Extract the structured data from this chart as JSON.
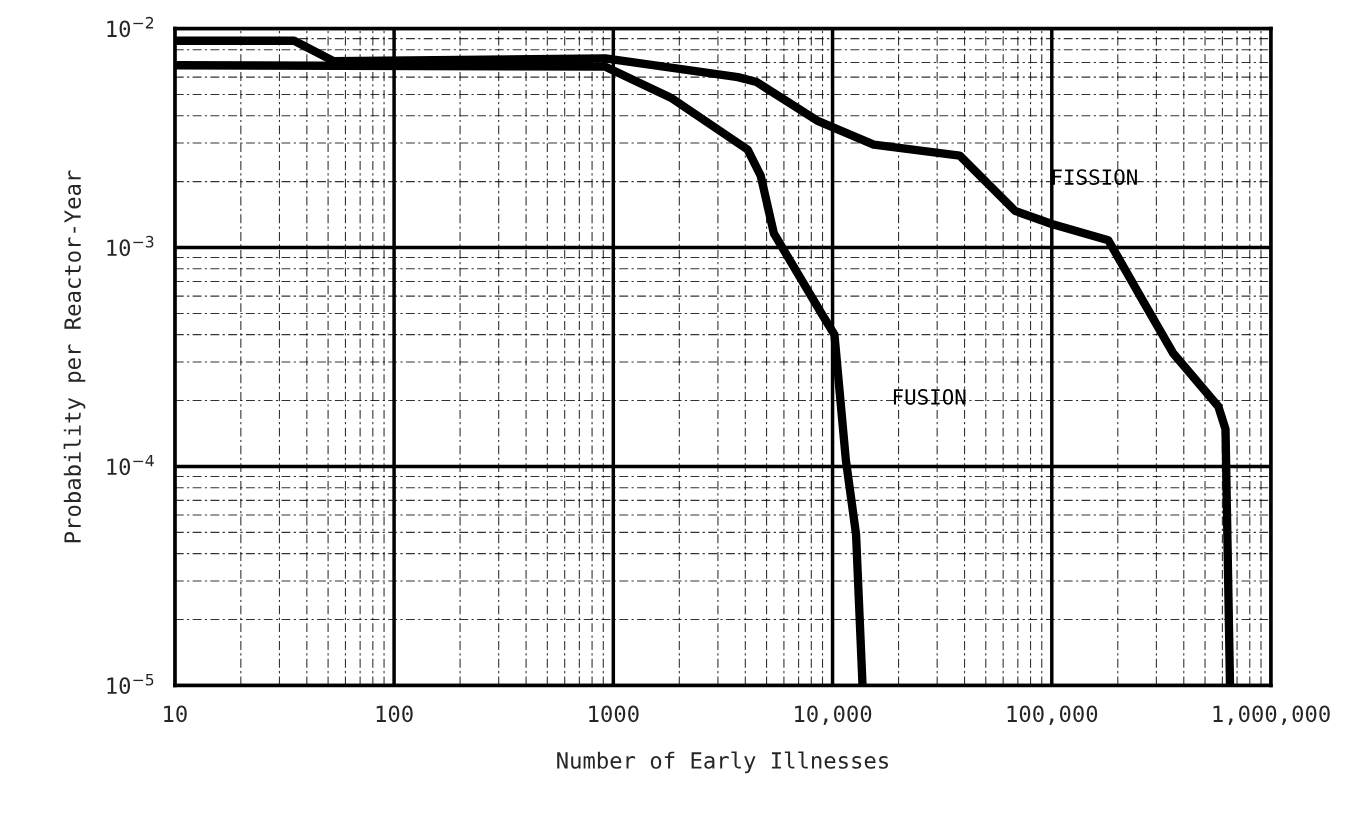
{
  "chart_data": {
    "type": "line",
    "xlabel": "Number of Early Illnesses",
    "ylabel": "Probability per Reactor-Year",
    "log": "xy",
    "grid": true,
    "legend": false,
    "xlim": [
      10,
      1000000
    ],
    "ylim": [
      1e-05,
      0.01
    ],
    "xticks": [
      10,
      100,
      {
        "value": 1000,
        "label": "1000"
      },
      {
        "value": 10000,
        "label": "10,000"
      },
      {
        "value": 100000,
        "label": "100,000"
      },
      {
        "value": 1000000,
        "label": "1,000,000"
      }
    ],
    "yticks": [
      {
        "value": 1e-05,
        "label": "10$^{−5}$"
      },
      {
        "value": 0.0001,
        "label": "10$^{−4}$"
      },
      {
        "value": 0.001,
        "label": "10$^{−3}$"
      },
      {
        "value": 0.01,
        "label": "10$^{−2}$"
      }
    ],
    "series": [
      {
        "name": "FISSION",
        "color": "#000000",
        "x": [
          10,
          35,
          53,
          920,
          3700,
          4500,
          8500,
          15400,
          38000,
          68000,
          100000,
          181000,
          266000,
          357000,
          575000,
          620000,
          650000
        ],
        "values": [
          0.0088,
          0.0088,
          0.0071,
          0.0073,
          0.006,
          0.0057,
          0.0038,
          0.00295,
          0.00263,
          0.00147,
          0.00128,
          0.00108,
          0.00055,
          0.00033,
          0.000188,
          0.000148,
          1e-05
        ]
      },
      {
        "name": "FUSION",
        "color": "#000000",
        "x": [
          10,
          920,
          1850,
          4100,
          4700,
          5400,
          8900,
          10200,
          11500,
          12800,
          13700
        ],
        "values": [
          0.0068,
          0.0067,
          0.0048,
          0.0028,
          0.00213,
          0.00116,
          0.0005,
          0.0004,
          0.000107,
          4.9e-05,
          1e-05
        ]
      }
    ]
  }
}
